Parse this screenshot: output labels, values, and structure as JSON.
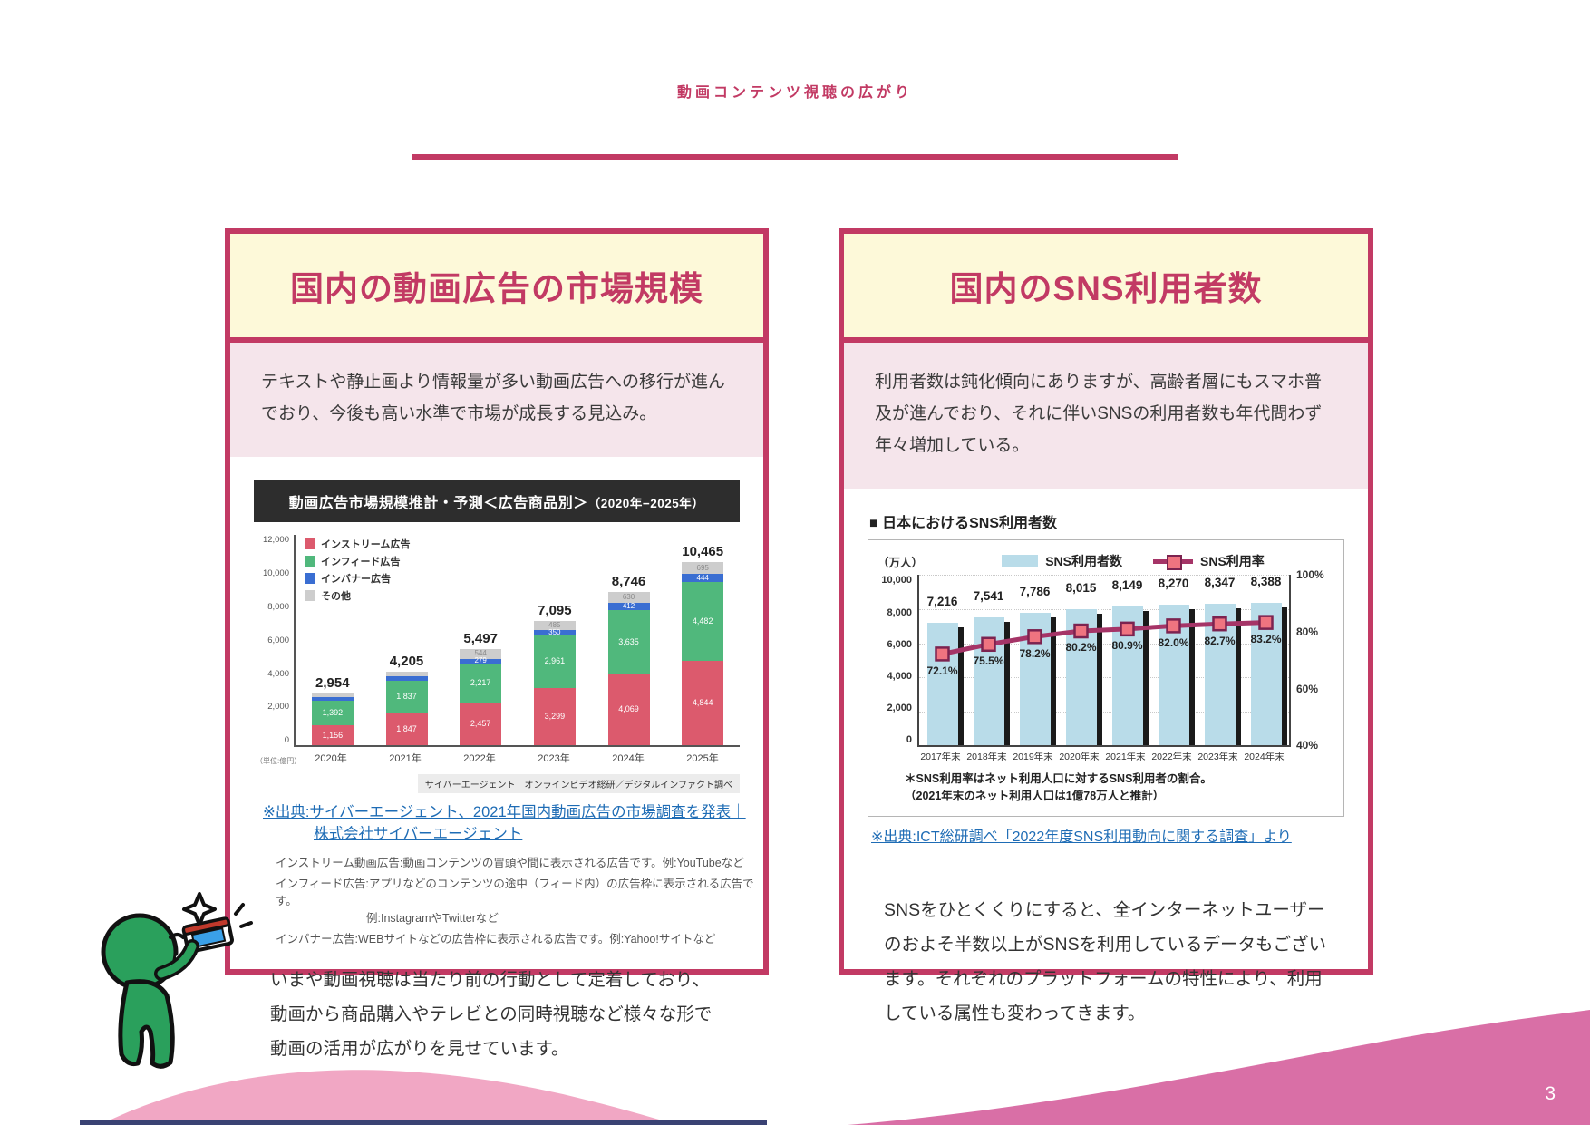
{
  "page": {
    "title": "動画コンテンツ視聴の広がり",
    "page_number": "3"
  },
  "colors": {
    "accent": "#c23a64",
    "header_bg": "#fdf9d9",
    "intro_bg": "#f5e5eb",
    "link_blue": "#1e6cb5",
    "chart_header_bg": "#2d2d2d",
    "instream_red": "#dc5a6d",
    "infeed_green": "#50b87c",
    "inbanner_blue": "#3a6ed2",
    "other_gray": "#cdcdcd",
    "sns_bar_blue": "#b9dce9",
    "sns_line_magenta": "#a53467",
    "sns_marker": "#ef7480",
    "wave_light_pink": "#f1a7c4",
    "wave_dark_pink": "#d96fa6",
    "wave_navy": "#3a4273",
    "mascot_green": "#2aa05c"
  },
  "left_panel": {
    "header": "国内の動画広告の市場規模",
    "intro": "テキストや静止画より情報量が多い動画広告への移行が進んでおり、今後も高い水準で市場が成長する見込み。",
    "source_link": {
      "line1": "※出典:サイバーエージェント、2021年国内動画広告の市場調査を発表｜",
      "line2": "株式会社サイバーエージェント"
    },
    "definitions": [
      {
        "line1": "インストリーム動画広告:動画コンテンツの冒頭や間に表示される広告です。例:YouTubeなど",
        "line2": ""
      },
      {
        "line1": "インフィード広告:アプリなどのコンテンツの途中（フィード内）の広告枠に表示される広告です。",
        "line2": "例:InstagramやTwitterなど"
      },
      {
        "line1": "インバナー広告:WEBサイトなどの広告枠に表示される広告です。例:Yahoo!サイトなど",
        "line2": ""
      }
    ],
    "paragraph": "いまや動画視聴は当たり前の行動として定着しており、動画から商品購入やテレビとの同時視聴など様々な形で動画の活用が広がりを見せています。"
  },
  "right_panel": {
    "header": "国内のSNS利用者数",
    "intro": "利用者数は鈍化傾向にありますが、高齢者層にもスマホ普及が進んでおり、それに伴いSNSの利用者数も年代問わず年々増加している。",
    "source_link": "※出典:ICT総研調べ「2022年度SNS利用動向に関する調査」より",
    "paragraph": "SNSをひとくくりにすると、全インターネットユーザーのおよそ半数以上がSNSを利用しているデータもございます。それぞれのプラットフォームの特性により、利用している属性も変わってきます。"
  },
  "chart_data": [
    {
      "type": "bar",
      "stacked": true,
      "title_main": "動画広告市場規模推計・予測＜広告商品別＞",
      "title_period": "（2020年−2025年）",
      "unit_label": "（単位:億円）",
      "categories": [
        "2020年",
        "2021年",
        "2022年",
        "2023年",
        "2024年",
        "2025年"
      ],
      "totals": [
        2954,
        4205,
        5497,
        7095,
        8746,
        10465
      ],
      "series": [
        {
          "name": "インストリーム広告",
          "color": "#dc5a6d",
          "values": [
            1156,
            1847,
            2457,
            3299,
            4069,
            4844
          ]
        },
        {
          "name": "インフィード広告",
          "color": "#50b87c",
          "values": [
            1392,
            1837,
            2217,
            2961,
            3635,
            4482
          ]
        },
        {
          "name": "インバナー広告",
          "color": "#3a6ed2",
          "values": [
            206,
            240,
            279,
            350,
            412,
            444
          ]
        },
        {
          "name": "その他",
          "color": "#cdcdcd",
          "values": [
            200,
            281,
            544,
            485,
            630,
            695
          ]
        }
      ],
      "ylim": [
        0,
        12000
      ],
      "yticks": [
        "12,000",
        "10,000",
        "8,000",
        "6,000",
        "4,000",
        "2,000",
        "0"
      ],
      "legend_position": "upper-left",
      "grid": false,
      "source": "サイバーエージェント　オンラインビデオ総研／デジタルインファクト調べ"
    },
    {
      "type": "bar",
      "combo": "bar+line",
      "heading": "■ 日本におけるSNS利用者数",
      "unit_label": "（万人）",
      "categories": [
        "2017年末",
        "2018年末",
        "2019年末",
        "2020年末",
        "2021年末",
        "2022年末",
        "2023年末",
        "2024年末"
      ],
      "series": [
        {
          "name": "SNS利用者数",
          "render": "bar",
          "color": "#b9dce9",
          "values": [
            7216,
            7541,
            7786,
            8015,
            8149,
            8270,
            8347,
            8388
          ]
        },
        {
          "name": "SNS利用率",
          "render": "line",
          "color": "#a53467",
          "values": [
            72.1,
            75.5,
            78.2,
            80.2,
            80.9,
            82.0,
            82.7,
            83.2
          ]
        }
      ],
      "left_axis": {
        "lim": [
          0,
          10000
        ],
        "ticks": [
          "10,000",
          "8,000",
          "6,000",
          "4,000",
          "2,000",
          "0"
        ]
      },
      "right_axis": {
        "lim": [
          40,
          100
        ],
        "ticks": [
          "100%",
          "80%",
          "60%",
          "40%"
        ]
      },
      "grid": "dotted-horizontal",
      "legend_position": "top-center",
      "note_line1": "＊SNS利用率はネット利用人口に対するSNS利用者の割合。",
      "note_line2": "（2021年末のネット利用人口は1億78万人と推計）"
    }
  ]
}
